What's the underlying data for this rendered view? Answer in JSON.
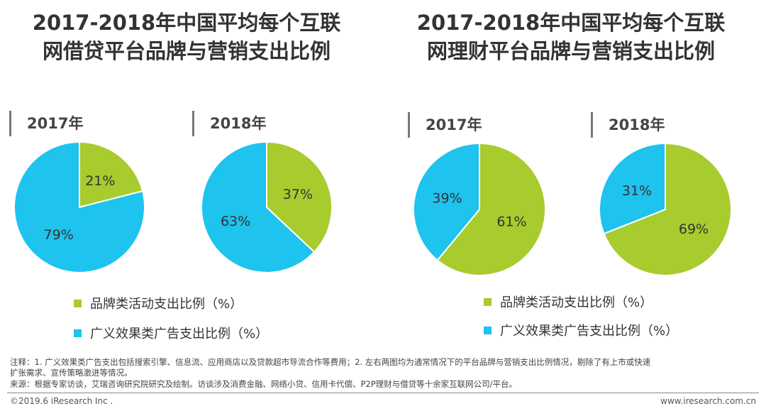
{
  "colors": {
    "brand": "#a8cb2e",
    "ads": "#1ec3ee"
  },
  "left": {
    "title_line1": "2017-2018年中国平均每个互联",
    "title_line2": "网借贷平台品牌与营销支出比例",
    "charts": [
      {
        "year": "2017年",
        "brand": 21,
        "ads": 79
      },
      {
        "year": "2018年",
        "brand": 37,
        "ads": 63
      }
    ]
  },
  "right": {
    "title_line1": "2017-2018年中国平均每个互联",
    "title_line2": "网理财平台品牌与营销支出比例",
    "charts": [
      {
        "year": "2017年",
        "brand": 61,
        "ads": 39
      },
      {
        "year": "2018年",
        "brand": 69,
        "ads": 31
      }
    ]
  },
  "legend": {
    "brand": "品牌类活动支出比例（%）",
    "ads": "广义效果类广告支出比例（%）"
  },
  "chart_data": [
    {
      "type": "pie",
      "title": "2017年 互联网借贷平台",
      "categories": [
        "品牌类活动支出比例（%）",
        "广义效果类广告支出比例（%）"
      ],
      "values": [
        21,
        79
      ]
    },
    {
      "type": "pie",
      "title": "2018年 互联网借贷平台",
      "categories": [
        "品牌类活动支出比例（%）",
        "广义效果类广告支出比例（%）"
      ],
      "values": [
        37,
        63
      ]
    },
    {
      "type": "pie",
      "title": "2017年 互联网理财平台",
      "categories": [
        "品牌类活动支出比例（%）",
        "广义效果类广告支出比例（%）"
      ],
      "values": [
        61,
        39
      ]
    },
    {
      "type": "pie",
      "title": "2018年 互联网理财平台",
      "categories": [
        "品牌类活动支出比例（%）",
        "广义效果类广告支出比例（%）"
      ],
      "values": [
        69,
        31
      ]
    }
  ],
  "notes": {
    "line1": "注释：1. 广义效果类广告支出包括搜索引擎、信息流、应用商店以及贷款超市导流合作等费用；2. 左右两图均为通常情况下的平台品牌与营销支出比例情况，剔除了有上市或快速",
    "line2": "扩张需求、宣传策略激进等情况。",
    "source": "来源：根据专家访谈，艾瑞咨询研究院研究及绘制。访谈涉及消费金融、网络小贷、信用卡代偿、P2P理财与借贷等十余家互联网公司/平台。"
  },
  "footer": {
    "copyright": "©2019.6 iResearch Inc .",
    "url": "www.iresearch.com.cn"
  }
}
